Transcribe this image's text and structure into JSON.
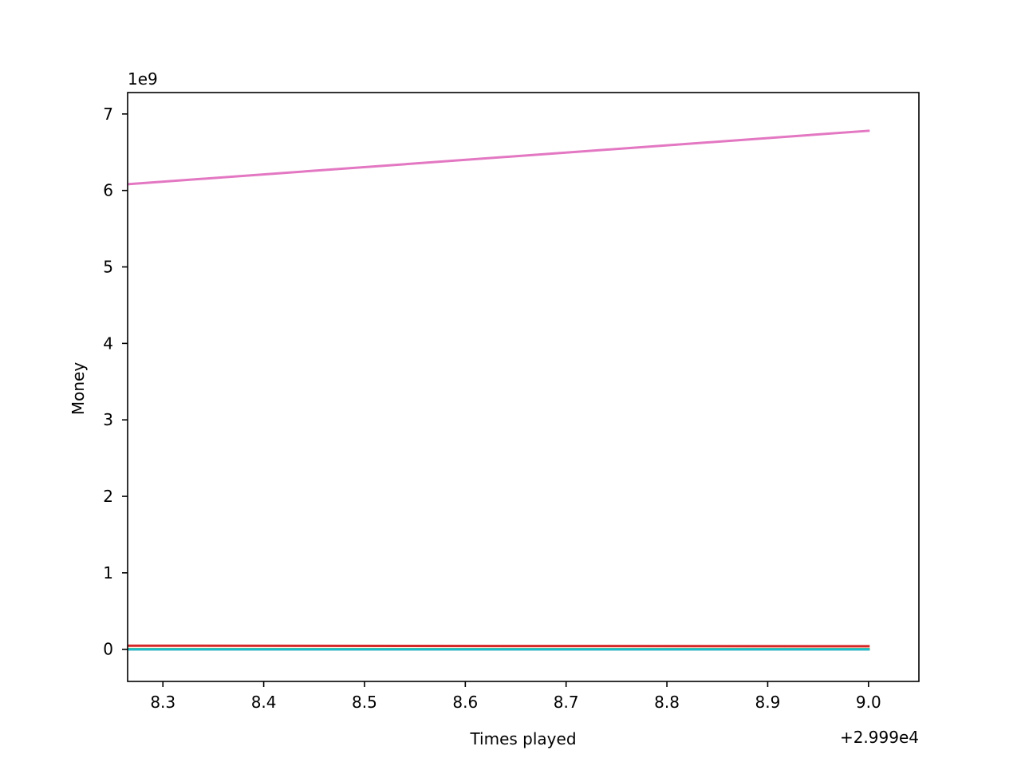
{
  "chart_data": {
    "type": "line",
    "title": "",
    "xlabel": "Times played",
    "ylabel": "Money",
    "x_offset_text": "+2.999e4",
    "y_scale_text": "1e9",
    "xlim": [
      29998.265,
      29999.05
    ],
    "ylim": [
      -0.42,
      7.28
    ],
    "x_ticks": [
      {
        "value": 29998.3,
        "label": "8.3"
      },
      {
        "value": 29998.4,
        "label": "8.4"
      },
      {
        "value": 29998.5,
        "label": "8.5"
      },
      {
        "value": 29998.6,
        "label": "8.6"
      },
      {
        "value": 29998.7,
        "label": "8.7"
      },
      {
        "value": 29998.8,
        "label": "8.8"
      },
      {
        "value": 29998.9,
        "label": "8.9"
      },
      {
        "value": 29999.0,
        "label": "9.0"
      }
    ],
    "y_ticks": [
      {
        "value": 0,
        "label": "0"
      },
      {
        "value": 1,
        "label": "1"
      },
      {
        "value": 2,
        "label": "2"
      },
      {
        "value": 3,
        "label": "3"
      },
      {
        "value": 4,
        "label": "4"
      },
      {
        "value": 5,
        "label": "5"
      },
      {
        "value": 6,
        "label": "6"
      },
      {
        "value": 7,
        "label": "7"
      }
    ],
    "grid": false,
    "legend": "none",
    "series": [
      {
        "color": "#1f77b4",
        "x": [
          29998.0,
          29999.0
        ],
        "y": [
          0.003,
          0.003
        ]
      },
      {
        "color": "#ff7f0e",
        "x": [
          29998.0,
          29999.0
        ],
        "y": [
          0.004,
          0.004
        ]
      },
      {
        "color": "#2ca02c",
        "x": [
          29998.0,
          29999.0
        ],
        "y": [
          0.002,
          0.002
        ]
      },
      {
        "color": "#d62728",
        "x": [
          29998.0,
          29999.0
        ],
        "y": [
          0.05,
          0.04
        ]
      },
      {
        "color": "#9467bd",
        "x": [
          29998.0,
          29999.0
        ],
        "y": [
          0.001,
          0.001
        ]
      },
      {
        "color": "#8c564b",
        "x": [
          29998.0,
          29999.0
        ],
        "y": [
          0.002,
          0.002
        ]
      },
      {
        "color": "#e377c2",
        "x": [
          29998.0,
          29999.0
        ],
        "y": [
          5.83,
          6.78
        ]
      },
      {
        "color": "#7f7f7f",
        "x": [
          29998.0,
          29999.0
        ],
        "y": [
          0.0,
          0.0
        ]
      },
      {
        "color": "#bcbd22",
        "x": [
          29998.0,
          29999.0
        ],
        "y": [
          0.003,
          0.003
        ]
      },
      {
        "color": "#17becf",
        "x": [
          29998.0,
          29999.0
        ],
        "y": [
          0.0,
          0.0
        ]
      }
    ]
  }
}
